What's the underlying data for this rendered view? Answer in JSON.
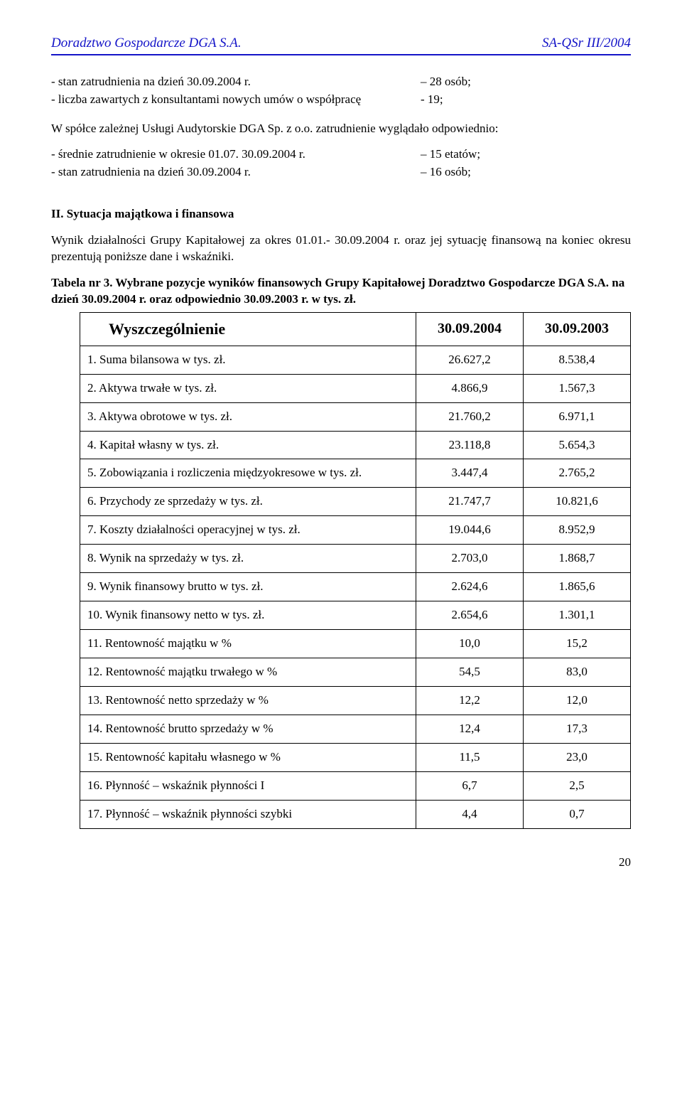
{
  "header": {
    "left": "Doradztwo Gospodarcze DGA S.A.",
    "right": "SA-QSr III/2004",
    "rule_color": "#1414c8"
  },
  "intro_lines": [
    {
      "label": "- stan zatrudnienia na dzień 30.09.2004 r.",
      "value": "– 28  osób;"
    },
    {
      "label": "- liczba zawartych z konsultantami nowych umów o współpracę",
      "value": "-  19;"
    }
  ],
  "paragraph1": "W spółce zależnej Usługi Audytorskie DGA Sp. z o.o. zatrudnienie wyglądało odpowiednio:",
  "intro_lines2": [
    {
      "label": "- średnie zatrudnienie w okresie 01.07.  30.09.2004 r.",
      "value": "– 15 etatów;"
    },
    {
      "label": "- stan zatrudnienia na dzień 30.09.2004 r.",
      "value": "– 16 osób;"
    }
  ],
  "section2_title": "II. Sytuacja majątkowa i finansowa",
  "section2_para": "Wynik działalności Grupy Kapitałowej za okres 01.01.- 30.09.2004 r. oraz jej sytuację finansową na koniec okresu prezentują poniższe dane i wskaźniki.",
  "table_caption": "Tabela nr 3. Wybrane pozycje wyników finansowych Grupy Kapitałowej Doradztwo Gospodarcze DGA S.A. na dzień 30.09.2004 r. oraz odpowiednio 30.09.2003 r. w tys. zł.",
  "table": {
    "head_label": "Wyszczególnienie",
    "col1": "30.09.2004",
    "col2": "30.09.2003",
    "rows": [
      {
        "label": "1. Suma bilansowa w tys. zł.",
        "v1": "26.627,2",
        "v2": "8.538,4"
      },
      {
        "label": "2. Aktywa trwałe w tys. zł.",
        "v1": "4.866,9",
        "v2": "1.567,3"
      },
      {
        "label": "3. Aktywa obrotowe w tys. zł.",
        "v1": "21.760,2",
        "v2": "6.971,1"
      },
      {
        "label": "4. Kapitał własny w tys. zł.",
        "v1": "23.118,8",
        "v2": "5.654,3"
      },
      {
        "label": "5. Zobowiązania i rozliczenia międzyokresowe w tys. zł.",
        "v1": "3.447,4",
        "v2": "2.765,2"
      },
      {
        "label": "6. Przychody ze sprzedaży w tys. zł.",
        "v1": "21.747,7",
        "v2": "10.821,6"
      },
      {
        "label": "7. Koszty działalności operacyjnej w tys. zł.",
        "v1": "19.044,6",
        "v2": "8.952,9"
      },
      {
        "label": "8. Wynik na sprzedaży w tys. zł.",
        "v1": "2.703,0",
        "v2": "1.868,7"
      },
      {
        "label": "9. Wynik finansowy brutto w tys. zł.",
        "v1": "2.624,6",
        "v2": "1.865,6"
      },
      {
        "label": "10. Wynik finansowy netto w tys. zł.",
        "v1": "2.654,6",
        "v2": "1.301,1"
      },
      {
        "label": "11. Rentowność majątku w %",
        "v1": "10,0",
        "v2": "15,2"
      },
      {
        "label": "12. Rentowność majątku trwałego w %",
        "v1": "54,5",
        "v2": "83,0"
      },
      {
        "label": "13. Rentowność netto sprzedaży w %",
        "v1": "12,2",
        "v2": "12,0"
      },
      {
        "label": "14. Rentowność brutto sprzedaży w %",
        "v1": "12,4",
        "v2": "17,3"
      },
      {
        "label": "15. Rentowność kapitału własnego w %",
        "v1": "11,5",
        "v2": "23,0"
      },
      {
        "label": "16. Płynność – wskaźnik płynności I",
        "v1": "6,7",
        "v2": "2,5"
      },
      {
        "label": "17. Płynność – wskaźnik płynności szybki",
        "v1": "4,4",
        "v2": "0,7"
      }
    ]
  },
  "page_number": "20"
}
